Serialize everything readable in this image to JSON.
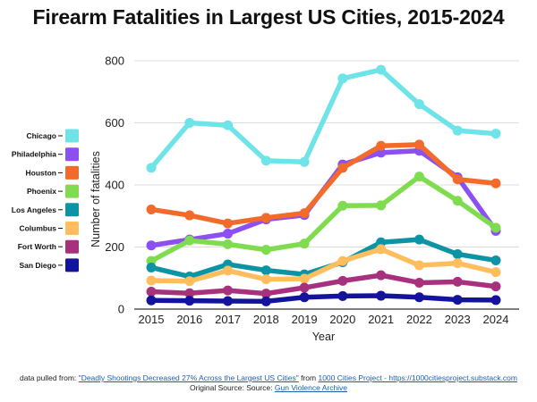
{
  "chart_data": {
    "type": "line",
    "title": "Firearm Fatalities in Largest US Cities, 2015-2024",
    "xlabel": "Year",
    "ylabel": "Number of fatalities",
    "x": [
      2015,
      2016,
      2017,
      2018,
      2019,
      2020,
      2021,
      2022,
      2023,
      2024
    ],
    "ylim": [
      0,
      800
    ],
    "yticks": [
      0,
      200,
      400,
      600,
      800
    ],
    "grid": "horizontal",
    "legend_position": "left",
    "series": [
      {
        "name": "Chicago",
        "color": "#6ee3e8",
        "values": [
          455,
          600,
          592,
          478,
          474,
          743,
          771,
          660,
          575,
          565
        ]
      },
      {
        "name": "Philadelphia",
        "color": "#8b4ff2",
        "values": [
          205,
          224,
          243,
          289,
          303,
          466,
          504,
          510,
          425,
          252
        ]
      },
      {
        "name": "Houston",
        "color": "#f26b2a",
        "values": [
          321,
          302,
          276,
          294,
          309,
          455,
          526,
          530,
          418,
          405
        ]
      },
      {
        "name": "Phoenix",
        "color": "#7fdc4f",
        "values": [
          155,
          221,
          209,
          191,
          211,
          333,
          334,
          427,
          349,
          262
        ]
      },
      {
        "name": "Los Angeles",
        "color": "#0d94a4",
        "values": [
          134,
          105,
          144,
          125,
          112,
          151,
          215,
          224,
          177,
          157
        ]
      },
      {
        "name": "Columbus",
        "color": "#ffbd5e",
        "values": [
          92,
          90,
          124,
          96,
          98,
          155,
          193,
          141,
          148,
          119
        ]
      },
      {
        "name": "Fort Worth",
        "color": "#a8317d",
        "values": [
          56,
          51,
          60,
          50,
          69,
          91,
          109,
          85,
          88,
          73
        ]
      },
      {
        "name": "San Diego",
        "color": "#13139e",
        "values": [
          28,
          27,
          26,
          25,
          38,
          42,
          43,
          38,
          30,
          29
        ]
      }
    ]
  },
  "footer": {
    "line1_prefix": "data pulled from: ",
    "link1": "\"Deadly Shootings Decreased 27% Across the Largest US Cities\"",
    "line1_middle": " from ",
    "link2": "1000 Cities Project - https://1000citiesproject.substack.com",
    "line2_prefix": "Original Source: Source: ",
    "link3": "Gun Violence Archive"
  }
}
